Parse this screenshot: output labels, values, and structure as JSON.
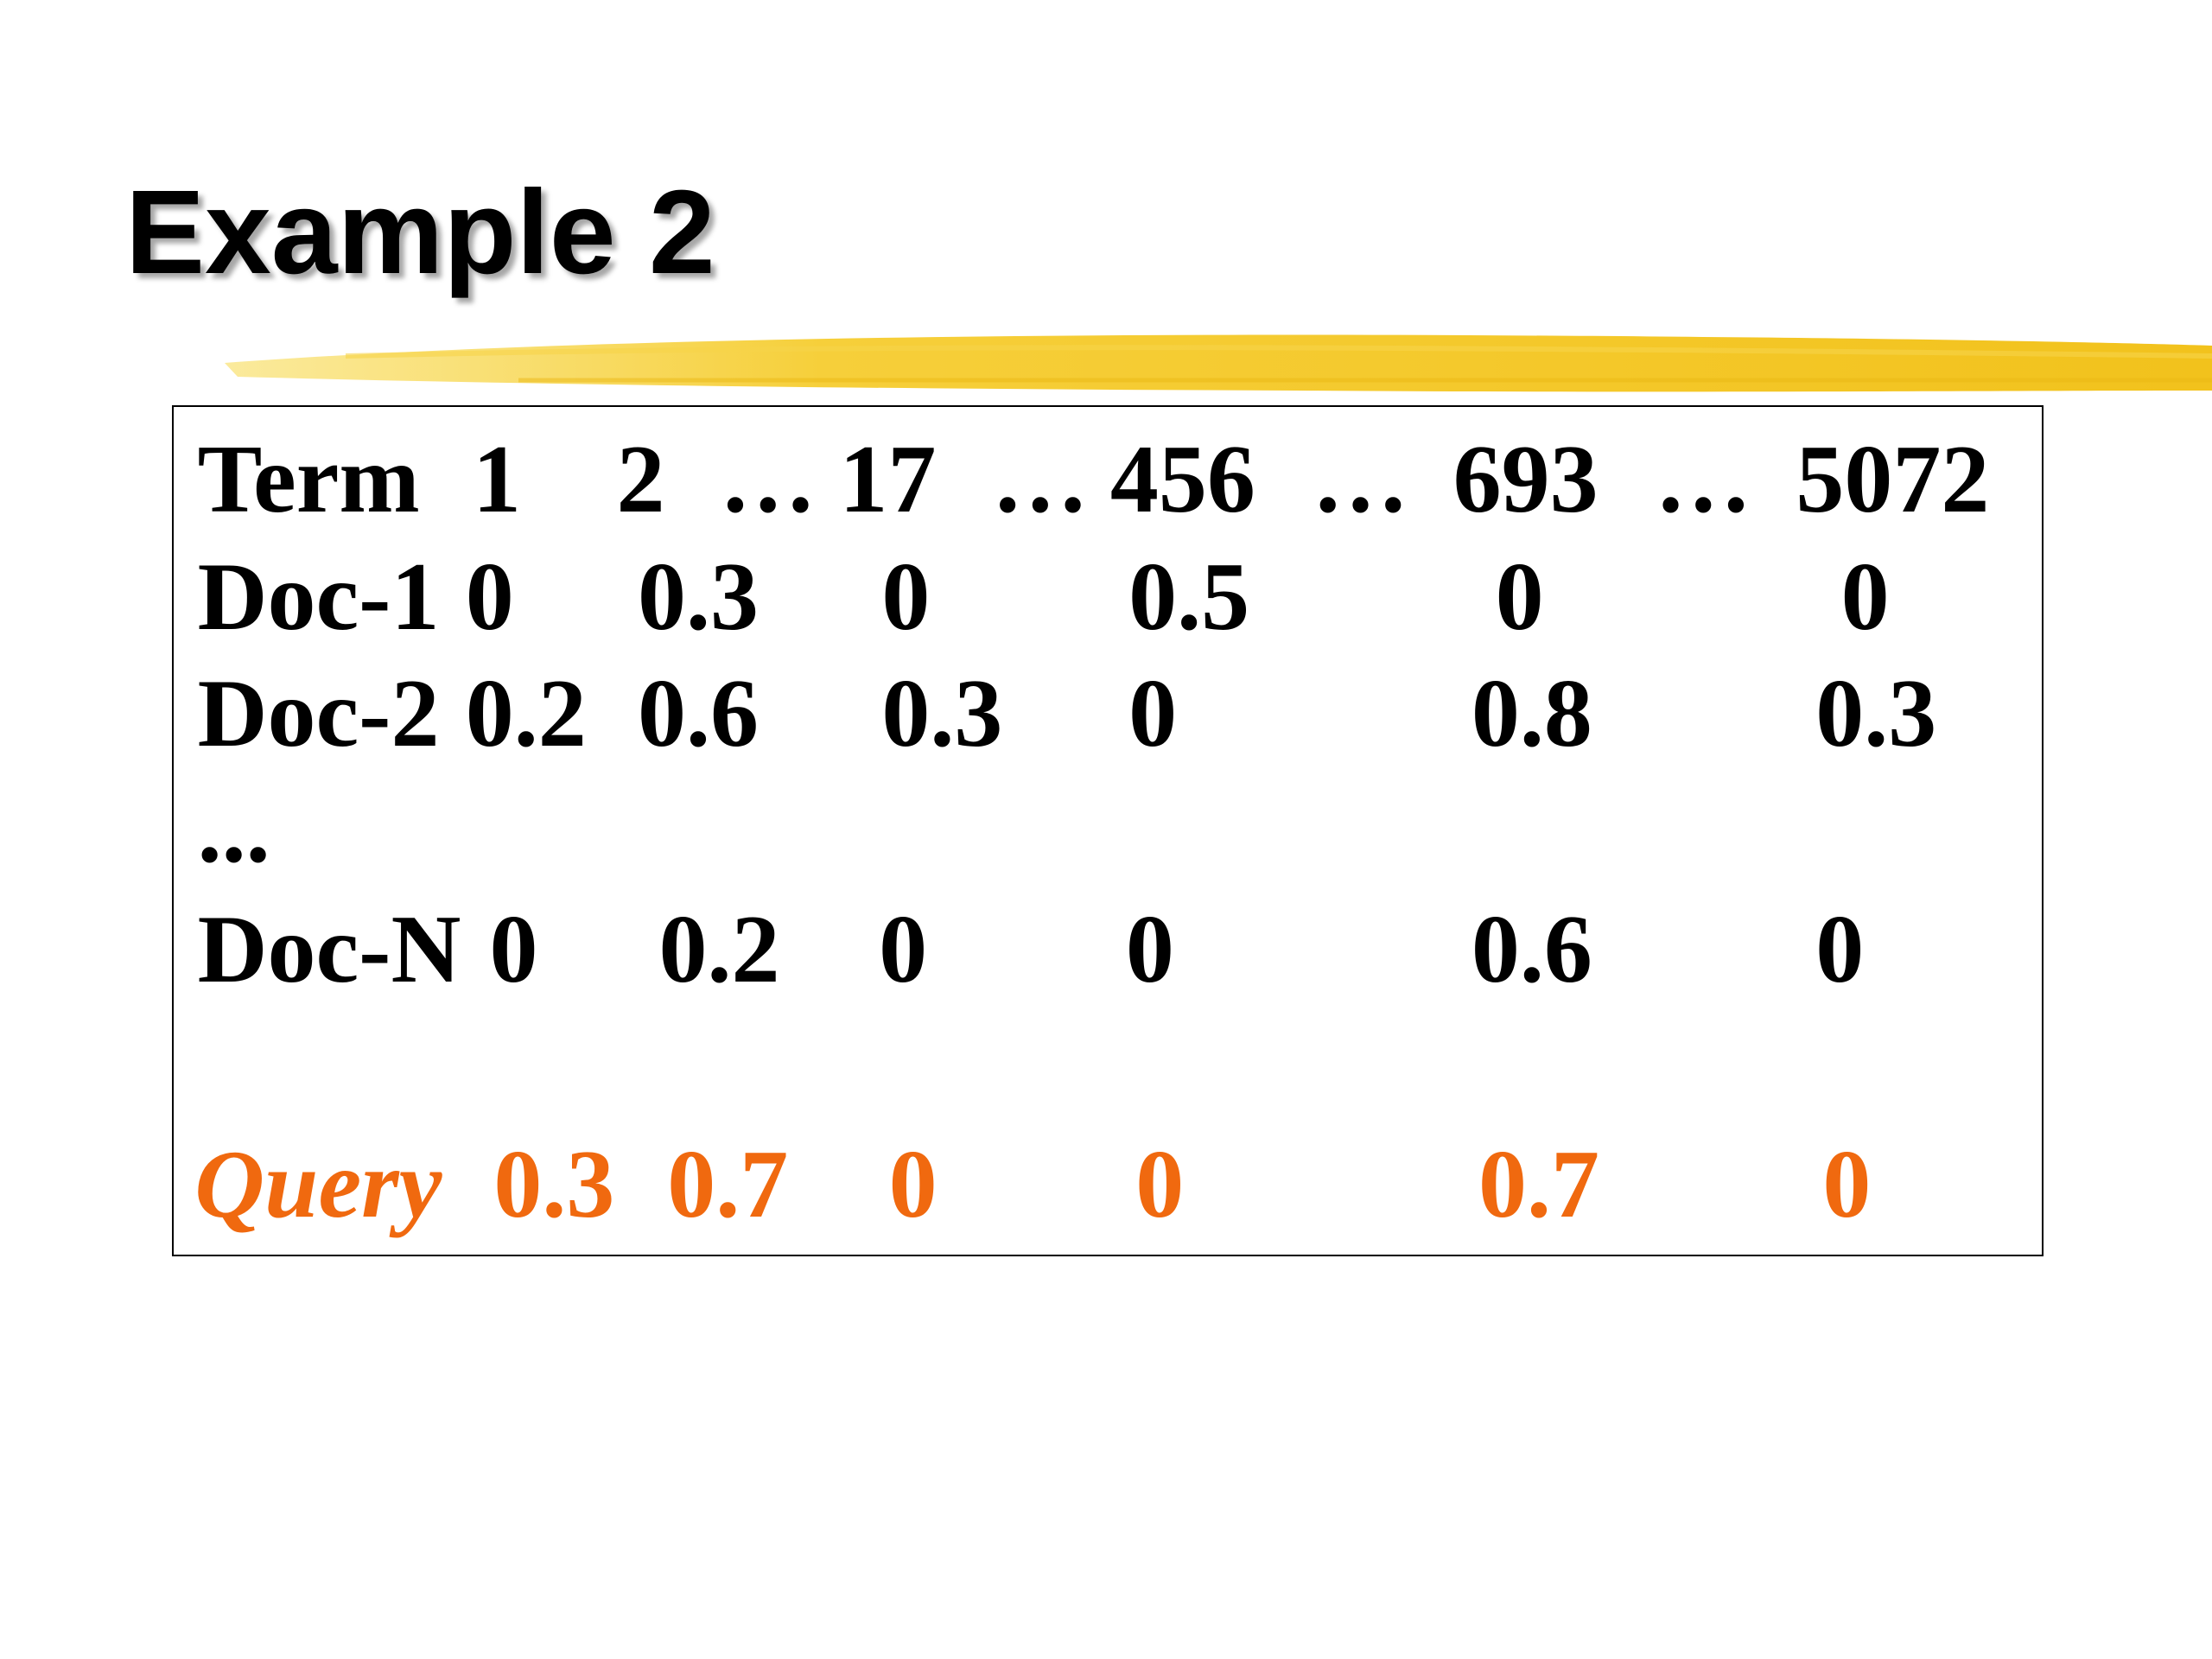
{
  "slide": {
    "title": "Example 2",
    "table": {
      "header": [
        "Term",
        "1",
        "2",
        "…",
        "17",
        "…",
        "456",
        "…",
        "693",
        "…",
        "5072"
      ],
      "rows": [
        [
          "Doc-1",
          "0",
          "0.3",
          "0",
          "0.5",
          "0",
          "0"
        ],
        [
          "Doc-2",
          "0.2",
          "0.6",
          "0.3",
          "0",
          "0.8",
          "0.3"
        ],
        [
          "..."
        ],
        [
          "Doc-N",
          "0",
          "0.2",
          "0",
          "0",
          "0.6",
          "0"
        ]
      ],
      "query": [
        "Query",
        "0.3",
        "0.7",
        "0",
        "0",
        "0.7",
        "0"
      ]
    }
  }
}
